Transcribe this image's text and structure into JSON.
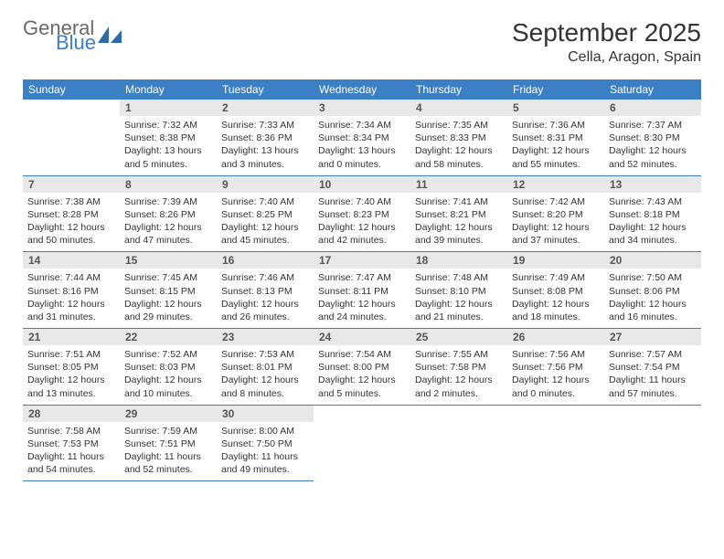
{
  "brand": {
    "name1": "General",
    "name2": "Blue",
    "color1": "#6a6a6a",
    "color2": "#3b7fc4"
  },
  "title": "September 2025",
  "location": "Cella, Aragon, Spain",
  "header_bg": "#3b7fc4",
  "daynum_bg": "#e8e8e8",
  "border_color": "#3b7fc4",
  "weekdays": [
    "Sunday",
    "Monday",
    "Tuesday",
    "Wednesday",
    "Thursday",
    "Friday",
    "Saturday"
  ],
  "start_offset": 1,
  "days": [
    {
      "n": 1,
      "sunrise": "7:32 AM",
      "sunset": "8:38 PM",
      "daylight": "13 hours and 5 minutes."
    },
    {
      "n": 2,
      "sunrise": "7:33 AM",
      "sunset": "8:36 PM",
      "daylight": "13 hours and 3 minutes."
    },
    {
      "n": 3,
      "sunrise": "7:34 AM",
      "sunset": "8:34 PM",
      "daylight": "13 hours and 0 minutes."
    },
    {
      "n": 4,
      "sunrise": "7:35 AM",
      "sunset": "8:33 PM",
      "daylight": "12 hours and 58 minutes."
    },
    {
      "n": 5,
      "sunrise": "7:36 AM",
      "sunset": "8:31 PM",
      "daylight": "12 hours and 55 minutes."
    },
    {
      "n": 6,
      "sunrise": "7:37 AM",
      "sunset": "8:30 PM",
      "daylight": "12 hours and 52 minutes."
    },
    {
      "n": 7,
      "sunrise": "7:38 AM",
      "sunset": "8:28 PM",
      "daylight": "12 hours and 50 minutes."
    },
    {
      "n": 8,
      "sunrise": "7:39 AM",
      "sunset": "8:26 PM",
      "daylight": "12 hours and 47 minutes."
    },
    {
      "n": 9,
      "sunrise": "7:40 AM",
      "sunset": "8:25 PM",
      "daylight": "12 hours and 45 minutes."
    },
    {
      "n": 10,
      "sunrise": "7:40 AM",
      "sunset": "8:23 PM",
      "daylight": "12 hours and 42 minutes."
    },
    {
      "n": 11,
      "sunrise": "7:41 AM",
      "sunset": "8:21 PM",
      "daylight": "12 hours and 39 minutes."
    },
    {
      "n": 12,
      "sunrise": "7:42 AM",
      "sunset": "8:20 PM",
      "daylight": "12 hours and 37 minutes."
    },
    {
      "n": 13,
      "sunrise": "7:43 AM",
      "sunset": "8:18 PM",
      "daylight": "12 hours and 34 minutes."
    },
    {
      "n": 14,
      "sunrise": "7:44 AM",
      "sunset": "8:16 PM",
      "daylight": "12 hours and 31 minutes."
    },
    {
      "n": 15,
      "sunrise": "7:45 AM",
      "sunset": "8:15 PM",
      "daylight": "12 hours and 29 minutes."
    },
    {
      "n": 16,
      "sunrise": "7:46 AM",
      "sunset": "8:13 PM",
      "daylight": "12 hours and 26 minutes."
    },
    {
      "n": 17,
      "sunrise": "7:47 AM",
      "sunset": "8:11 PM",
      "daylight": "12 hours and 24 minutes."
    },
    {
      "n": 18,
      "sunrise": "7:48 AM",
      "sunset": "8:10 PM",
      "daylight": "12 hours and 21 minutes."
    },
    {
      "n": 19,
      "sunrise": "7:49 AM",
      "sunset": "8:08 PM",
      "daylight": "12 hours and 18 minutes."
    },
    {
      "n": 20,
      "sunrise": "7:50 AM",
      "sunset": "8:06 PM",
      "daylight": "12 hours and 16 minutes."
    },
    {
      "n": 21,
      "sunrise": "7:51 AM",
      "sunset": "8:05 PM",
      "daylight": "12 hours and 13 minutes."
    },
    {
      "n": 22,
      "sunrise": "7:52 AM",
      "sunset": "8:03 PM",
      "daylight": "12 hours and 10 minutes."
    },
    {
      "n": 23,
      "sunrise": "7:53 AM",
      "sunset": "8:01 PM",
      "daylight": "12 hours and 8 minutes."
    },
    {
      "n": 24,
      "sunrise": "7:54 AM",
      "sunset": "8:00 PM",
      "daylight": "12 hours and 5 minutes."
    },
    {
      "n": 25,
      "sunrise": "7:55 AM",
      "sunset": "7:58 PM",
      "daylight": "12 hours and 2 minutes."
    },
    {
      "n": 26,
      "sunrise": "7:56 AM",
      "sunset": "7:56 PM",
      "daylight": "12 hours and 0 minutes."
    },
    {
      "n": 27,
      "sunrise": "7:57 AM",
      "sunset": "7:54 PM",
      "daylight": "11 hours and 57 minutes."
    },
    {
      "n": 28,
      "sunrise": "7:58 AM",
      "sunset": "7:53 PM",
      "daylight": "11 hours and 54 minutes."
    },
    {
      "n": 29,
      "sunrise": "7:59 AM",
      "sunset": "7:51 PM",
      "daylight": "11 hours and 52 minutes."
    },
    {
      "n": 30,
      "sunrise": "8:00 AM",
      "sunset": "7:50 PM",
      "daylight": "11 hours and 49 minutes."
    }
  ],
  "labels": {
    "sunrise": "Sunrise:",
    "sunset": "Sunset:",
    "daylight": "Daylight:"
  }
}
